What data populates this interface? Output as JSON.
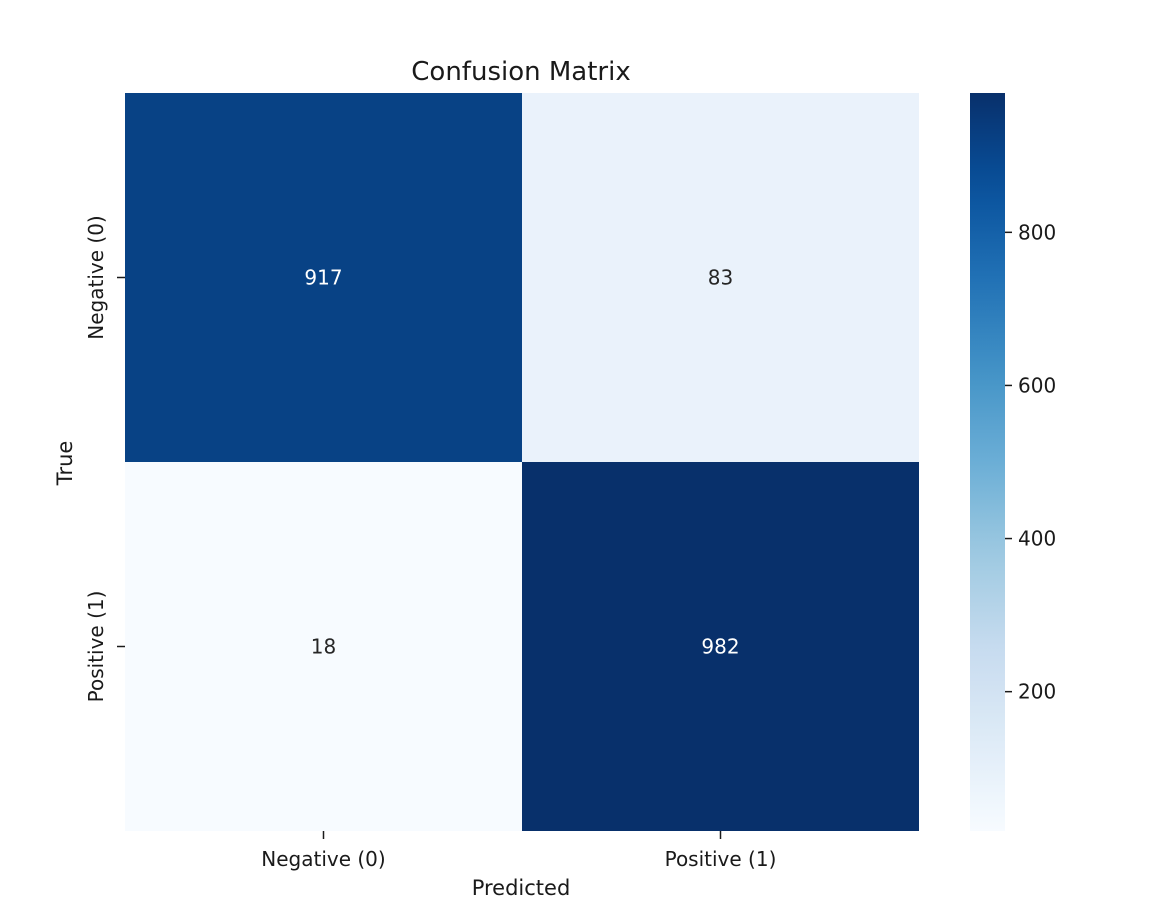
{
  "chart_data": {
    "type": "heatmap",
    "title": "Confusion Matrix",
    "xlabel": "Predicted",
    "ylabel": "True",
    "x_categories": [
      "Negative (0)",
      "Positive (1)"
    ],
    "y_categories": [
      "Negative (0)",
      "Positive (1)"
    ],
    "values": [
      [
        917,
        83
      ],
      [
        18,
        982
      ]
    ],
    "colormap": "Blues",
    "color_range": [
      18,
      982
    ],
    "colorbar_ticks": [
      200,
      400,
      600,
      800
    ],
    "colors": {
      "low": "#f7fbff",
      "high": "#08306b",
      "text_dark": "#262626",
      "text_light": "#ffffff"
    }
  }
}
